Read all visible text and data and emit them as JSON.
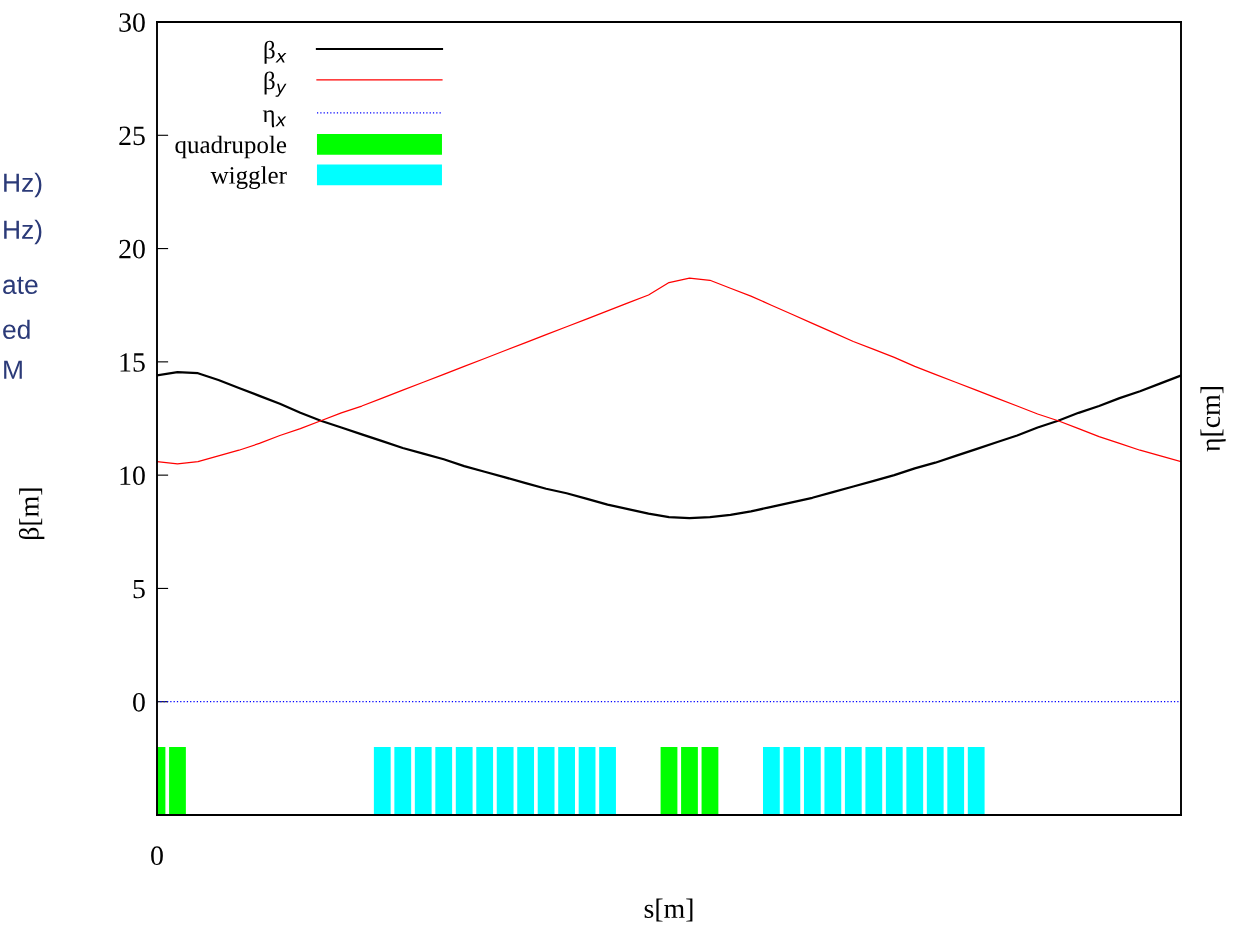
{
  "chart_data": {
    "type": "line",
    "xlabel": "s[m]",
    "ylabel": "β[m]",
    "y2label": "η[cm]",
    "categories": [
      "0",
      null,
      null,
      null,
      null,
      null,
      null,
      null,
      null,
      null,
      null,
      null,
      null,
      null,
      null,
      null,
      null,
      null,
      null,
      null,
      null,
      null,
      null,
      null,
      null,
      null,
      null,
      null,
      null,
      null,
      null,
      null,
      null,
      null,
      null,
      null,
      null,
      null,
      null,
      null,
      null,
      null,
      null,
      null,
      null,
      null,
      null,
      null,
      null,
      null,
      null
    ],
    "ylim": [
      -5,
      30
    ],
    "yticks": [
      0,
      5,
      10,
      15,
      20,
      25,
      30
    ],
    "legend": "top left",
    "grid": false,
    "annotations": [
      "Hz)",
      "Hz)",
      "ate",
      "ed",
      "M"
    ],
    "series": [
      {
        "name": "β$_{x}$",
        "color": "#000000",
        "line_style": "solid",
        "values": [
          14.4,
          14.55,
          14.5,
          14.2,
          13.85,
          13.5,
          13.15,
          12.75,
          12.4,
          12.1,
          11.8,
          11.5,
          11.2,
          10.95,
          10.7,
          10.4,
          10.15,
          9.9,
          9.65,
          9.4,
          9.2,
          8.95,
          8.7,
          8.5,
          8.3,
          8.15,
          8.1,
          8.15,
          8.25,
          8.4,
          8.6,
          8.8,
          9.0,
          9.25,
          9.5,
          9.75,
          10.0,
          10.3,
          10.55,
          10.85,
          11.15,
          11.45,
          11.75,
          12.1,
          12.4,
          12.75,
          13.05,
          13.4,
          13.7,
          14.05,
          14.4
        ]
      },
      {
        "name": "β$_{y}$",
        "color": "#ff0000",
        "line_style": "solid",
        "values": [
          10.6,
          10.5,
          10.6,
          10.85,
          11.1,
          11.4,
          11.75,
          12.05,
          12.4,
          12.75,
          13.05,
          13.4,
          13.75,
          14.1,
          14.45,
          14.8,
          15.15,
          15.5,
          15.85,
          16.2,
          16.55,
          16.9,
          17.25,
          17.6,
          17.95,
          18.5,
          18.7,
          18.6,
          18.25,
          17.9,
          17.5,
          17.1,
          16.7,
          16.3,
          15.9,
          15.55,
          15.2,
          14.8,
          14.45,
          14.1,
          13.75,
          13.4,
          13.05,
          12.7,
          12.4,
          12.05,
          11.7,
          11.4,
          11.1,
          10.85,
          10.6
        ]
      },
      {
        "name": "η$_{x}$",
        "color": "#0000ff",
        "line_style": "dotted",
        "values": [
          0,
          0,
          0,
          0,
          0,
          0,
          0,
          0,
          0,
          0,
          0,
          0,
          0,
          0,
          0,
          0,
          0,
          0,
          0,
          0,
          0,
          0,
          0,
          0,
          0,
          0,
          0,
          0,
          0,
          0,
          0,
          0,
          0,
          0,
          0,
          0,
          0,
          0,
          0,
          0,
          0,
          0,
          0,
          0,
          0,
          0,
          0,
          0,
          0,
          0,
          0
        ]
      },
      {
        "name": "quadrupole",
        "type": "bar",
        "color": "#00ff00",
        "values": [
          3,
          3,
          null,
          null,
          null,
          null,
          null,
          null,
          null,
          null,
          null,
          null,
          null,
          null,
          null,
          null,
          null,
          null,
          null,
          null,
          null,
          null,
          null,
          null,
          null,
          3,
          3,
          3,
          null,
          null,
          null,
          null,
          null,
          null,
          null,
          null,
          null,
          null,
          null,
          null,
          null,
          null,
          null,
          null,
          null,
          null,
          null,
          null,
          null,
          null,
          null
        ],
        "base": [
          -5,
          -5,
          null,
          null,
          null,
          null,
          null,
          null,
          null,
          null,
          null,
          null,
          null,
          null,
          null,
          null,
          null,
          null,
          null,
          null,
          null,
          null,
          null,
          null,
          null,
          -5,
          -5,
          -5,
          null,
          null,
          null,
          null,
          null,
          null,
          null,
          null,
          null,
          null,
          null,
          null,
          null,
          null,
          null,
          null,
          null,
          null,
          null,
          null,
          null,
          null,
          null
        ]
      },
      {
        "name": "wiggler",
        "type": "bar",
        "color": "#00ffff",
        "values": [
          null,
          null,
          null,
          null,
          null,
          null,
          null,
          null,
          null,
          null,
          null,
          3,
          3,
          3,
          3,
          3,
          3,
          3,
          3,
          3,
          3,
          3,
          3,
          null,
          null,
          null,
          null,
          null,
          null,
          null,
          3,
          3,
          3,
          3,
          3,
          3,
          3,
          3,
          3,
          3,
          3,
          null,
          null,
          null,
          null,
          null,
          null,
          null,
          null,
          null,
          null
        ],
        "base": [
          null,
          null,
          null,
          null,
          null,
          null,
          null,
          null,
          null,
          null,
          null,
          -5,
          -5,
          -5,
          -5,
          -5,
          -5,
          -5,
          -5,
          -5,
          -5,
          -5,
          -5,
          null,
          null,
          null,
          null,
          null,
          null,
          null,
          -5,
          -5,
          -5,
          -5,
          -5,
          -5,
          -5,
          -5,
          -5,
          -5,
          -5,
          null,
          null,
          null,
          null,
          null,
          null,
          null,
          null,
          null,
          null
        ]
      }
    ]
  }
}
